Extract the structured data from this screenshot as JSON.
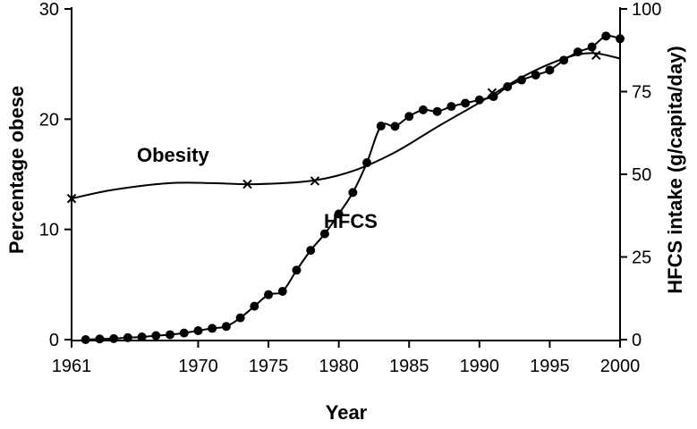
{
  "chart_data": {
    "type": "line",
    "title": "",
    "xlabel": "Year",
    "ylabel": "Percentage obese",
    "y2label": "HFCS intake (g/capita/day)",
    "xlim": [
      1961,
      2000
    ],
    "ylim": [
      0,
      30
    ],
    "y2lim": [
      0,
      100
    ],
    "x_ticks": [
      "1961",
      "1970",
      "1975",
      "1980",
      "1985",
      "1990",
      "1995",
      "2000"
    ],
    "y_ticks": [
      "0",
      "10",
      "20",
      "30"
    ],
    "y2_ticks": [
      "0",
      "25",
      "50",
      "75",
      "100"
    ],
    "grid": false,
    "legend": "none",
    "series": [
      {
        "name": "Obesity",
        "axis": "left",
        "marker": "x",
        "curve": {
          "x": [
            1961,
            1964,
            1968,
            1971,
            1974,
            1978,
            1981,
            1984,
            1987,
            1990,
            1993,
            1996,
            1998,
            2000
          ],
          "y": [
            12.8,
            13.6,
            14.2,
            14.2,
            14.1,
            14.4,
            15.3,
            17.0,
            19.3,
            21.5,
            23.8,
            25.5,
            26.0,
            25.5
          ]
        },
        "markers": {
          "x": [
            1961,
            1973.5,
            1978.3,
            1990.9,
            1998.3
          ],
          "y": [
            12.8,
            14.1,
            14.4,
            22.4,
            25.8
          ]
        }
      },
      {
        "name": "HFCS",
        "axis": "right",
        "marker": "circle",
        "x": [
          1962,
          1963,
          1964,
          1965,
          1966,
          1967,
          1968,
          1969,
          1970,
          1971,
          1972,
          1973,
          1974,
          1975,
          1976,
          1977,
          1978,
          1979,
          1980,
          1981,
          1982,
          1983,
          1984,
          1985,
          1986,
          1987,
          1988,
          1989,
          1990,
          1991,
          1992,
          1993,
          1994,
          1995,
          1996,
          1997,
          1998,
          1999,
          2000
        ],
        "y": [
          0,
          0.2,
          0.3,
          0.6,
          0.8,
          1.2,
          1.5,
          2.0,
          2.7,
          3.4,
          4.0,
          6.6,
          10.1,
          13.6,
          14.6,
          21.0,
          27.0,
          32.0,
          38.0,
          44.5,
          53.5,
          64.6,
          64.5,
          67.5,
          69.5,
          69.0,
          70.5,
          71.5,
          72.5,
          73.5,
          76.5,
          78.5,
          80.0,
          81.5,
          84.5,
          87.0,
          88.5,
          91.8,
          91.0
        ]
      }
    ],
    "annotations": [
      "Obesity",
      "HFCS"
    ]
  }
}
